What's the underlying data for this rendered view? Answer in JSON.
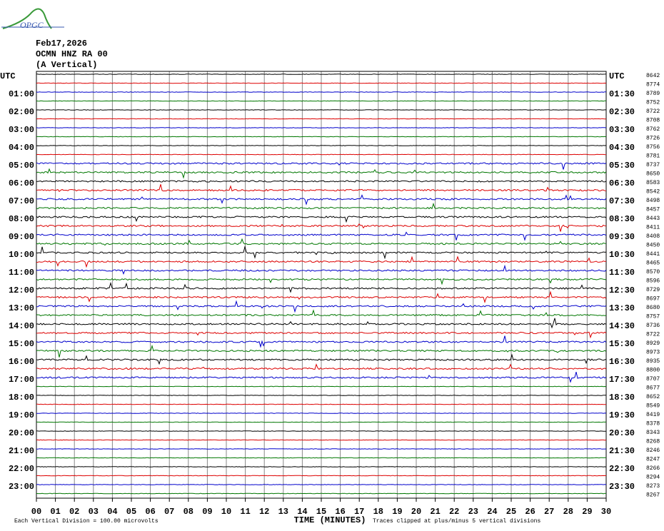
{
  "logo": "OPGC",
  "header": {
    "date": "Feb17,2026",
    "station": "OCMN HNZ RA 00",
    "component": "(A Vertical)"
  },
  "left_labels": [
    "UTC",
    "01:00",
    "02:00",
    "03:00",
    "04:00",
    "05:00",
    "06:00",
    "07:00",
    "08:00",
    "09:00",
    "10:00",
    "11:00",
    "12:00",
    "13:00",
    "14:00",
    "15:00",
    "16:00",
    "17:00",
    "18:00",
    "19:00",
    "20:00",
    "21:00",
    "22:00",
    "23:00"
  ],
  "right_labels": [
    "UTC",
    "01:30",
    "02:30",
    "03:30",
    "04:30",
    "05:30",
    "06:30",
    "07:30",
    "08:30",
    "09:30",
    "10:30",
    "11:30",
    "12:30",
    "13:30",
    "14:30",
    "15:30",
    "16:30",
    "17:30",
    "18:30",
    "19:30",
    "20:30",
    "21:30",
    "22:30",
    "23:30"
  ],
  "trace_numbers": [
    "8642",
    "8774",
    "8789",
    "8752",
    "8722",
    "8708",
    "8762",
    "8726",
    "8756",
    "8781",
    "8737",
    "8650",
    "8583",
    "8542",
    "8498",
    "8457",
    "8443",
    "8411",
    "8408",
    "8450",
    "8441",
    "8465",
    "8570",
    "8596",
    "8729",
    "8697",
    "8680",
    "8757",
    "8736",
    "8722",
    "8929",
    "8973",
    "8935",
    "8800",
    "8707",
    "8677",
    "8652",
    "8549",
    "8419",
    "8378",
    "8343",
    "8268",
    "8246",
    "8247",
    "8266",
    "8294",
    "8273",
    "8267"
  ],
  "x_labels": [
    "00",
    "01",
    "02",
    "03",
    "04",
    "05",
    "06",
    "07",
    "08",
    "09",
    "10",
    "11",
    "12",
    "13",
    "14",
    "15",
    "16",
    "17",
    "18",
    "19",
    "20",
    "21",
    "22",
    "23",
    "24",
    "25",
    "26",
    "27",
    "28",
    "29",
    "30"
  ],
  "x_title": "TIME (MINUTES)",
  "footer": {
    "scale": "Each Vertical Division =  100.00 microvolts",
    "clip": "Traces clipped at plus/minus 5 vertical divisions"
  }
}
